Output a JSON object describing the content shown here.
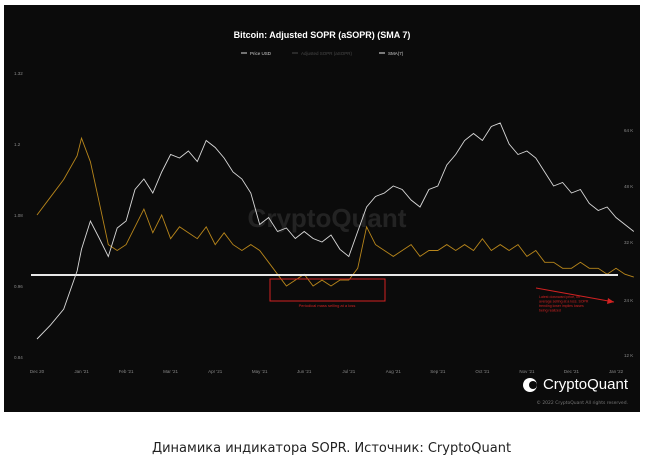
{
  "caption": "Динамика индикатора SOPR. Источник: CryptoQuant",
  "brand": {
    "logo_text": "CryptoQuant",
    "copyright": "© 2022 CryptoQuant All rights reserved.",
    "watermark": "CryptoQuant"
  },
  "colors": {
    "background": "#0b0b0b",
    "price": "#d9d9d9",
    "sopr": "#b8861b",
    "baseline": "#e8e8e8",
    "annotation": "#d22222"
  },
  "chart_data": {
    "type": "line",
    "title": "Bitcoin: Adjusted SOPR (aSOPR) (SMA 7)",
    "legend": [
      "Price USD",
      "Adjusted SOPR (aSOPR)",
      "SMA(7)"
    ],
    "legend_position": "top-center",
    "grid": false,
    "x_ticks": [
      "Dec 20",
      "Jan '21",
      "Feb '21",
      "Mar '21",
      "Apr '21",
      "May '21",
      "Jun '21",
      "Jul '21",
      "Aug '21",
      "Sep '21",
      "Oct '21",
      "Nov '21",
      "Dec '21",
      "Jan '22"
    ],
    "y_left_ticks": [
      "1.32",
      "1.2",
      "1.08",
      "0.96",
      "0.84"
    ],
    "y_right_ticks": [
      "64 K",
      "48 K",
      "32 K",
      "24 K",
      "12 K"
    ],
    "y_left_range": [
      0.84,
      1.32
    ],
    "y_right_range": [
      12000,
      64000
    ],
    "baseline": 1.0,
    "annotations": [
      "Periodical mass selling at a loss",
      "Latest downward price, on average selling at a loss. SOPR trending lower implies losses being realized"
    ],
    "series": [
      {
        "name": "Price USD",
        "axis": "right",
        "x_month": [
          0,
          0.3,
          0.6,
          0.9,
          1.0,
          1.2,
          1.4,
          1.6,
          1.8,
          2.0,
          2.2,
          2.4,
          2.6,
          2.8,
          3.0,
          3.2,
          3.4,
          3.6,
          3.8,
          4.0,
          4.2,
          4.4,
          4.6,
          4.8,
          5.0,
          5.2,
          5.4,
          5.6,
          5.8,
          6.0,
          6.2,
          6.4,
          6.6,
          6.8,
          7.0,
          7.2,
          7.4,
          7.6,
          7.8,
          8.0,
          8.2,
          8.4,
          8.6,
          8.8,
          9.0,
          9.2,
          9.4,
          9.6,
          9.8,
          10.0,
          10.2,
          10.4,
          10.6,
          10.8,
          11.0,
          11.2,
          11.4,
          11.6,
          11.8,
          12.0,
          12.2,
          12.4,
          12.6,
          12.8,
          13.0,
          13.2,
          13.4
        ],
        "values": [
          15500,
          18500,
          22000,
          28000,
          31000,
          38000,
          33000,
          30000,
          36000,
          38000,
          47000,
          50000,
          46000,
          52000,
          57000,
          56000,
          58000,
          55000,
          61000,
          59000,
          56000,
          52000,
          50000,
          46000,
          37000,
          39000,
          35000,
          36000,
          33000,
          35000,
          33000,
          32000,
          34000,
          31000,
          30000,
          35000,
          42000,
          45000,
          46000,
          48000,
          47000,
          44000,
          42000,
          47000,
          48000,
          54000,
          57000,
          61000,
          63000,
          61000,
          65000,
          66000,
          60000,
          57000,
          58000,
          56000,
          52000,
          48000,
          49000,
          46000,
          47000,
          43000,
          41000,
          42000,
          39000,
          37000,
          35000
        ]
      },
      {
        "name": "SMA(7)",
        "axis": "left",
        "x_month": [
          0,
          0.3,
          0.6,
          0.9,
          1.0,
          1.2,
          1.4,
          1.6,
          1.8,
          2.0,
          2.2,
          2.4,
          2.6,
          2.8,
          3.0,
          3.2,
          3.4,
          3.6,
          3.8,
          4.0,
          4.2,
          4.4,
          4.6,
          4.8,
          5.0,
          5.2,
          5.4,
          5.6,
          5.8,
          6.0,
          6.2,
          6.4,
          6.6,
          6.8,
          7.0,
          7.2,
          7.4,
          7.6,
          7.8,
          8.0,
          8.2,
          8.4,
          8.6,
          8.8,
          9.0,
          9.2,
          9.4,
          9.6,
          9.8,
          10.0,
          10.2,
          10.4,
          10.6,
          10.8,
          11.0,
          11.2,
          11.4,
          11.6,
          11.8,
          12.0,
          12.2,
          12.4,
          12.6,
          12.8,
          13.0,
          13.2,
          13.4
        ],
        "values": [
          1.08,
          1.11,
          1.14,
          1.18,
          1.21,
          1.17,
          1.1,
          1.03,
          1.02,
          1.03,
          1.06,
          1.09,
          1.05,
          1.08,
          1.04,
          1.06,
          1.05,
          1.04,
          1.06,
          1.03,
          1.05,
          1.03,
          1.02,
          1.03,
          1.02,
          1.0,
          0.98,
          0.96,
          0.97,
          0.98,
          0.96,
          0.97,
          0.96,
          0.97,
          0.97,
          0.99,
          1.06,
          1.03,
          1.02,
          1.01,
          1.02,
          1.03,
          1.01,
          1.02,
          1.02,
          1.03,
          1.02,
          1.03,
          1.02,
          1.04,
          1.02,
          1.03,
          1.02,
          1.03,
          1.01,
          1.02,
          1.0,
          1.0,
          0.99,
          0.99,
          1.0,
          0.99,
          0.99,
          0.98,
          0.99,
          0.98,
          0.975
        ]
      }
    ]
  }
}
